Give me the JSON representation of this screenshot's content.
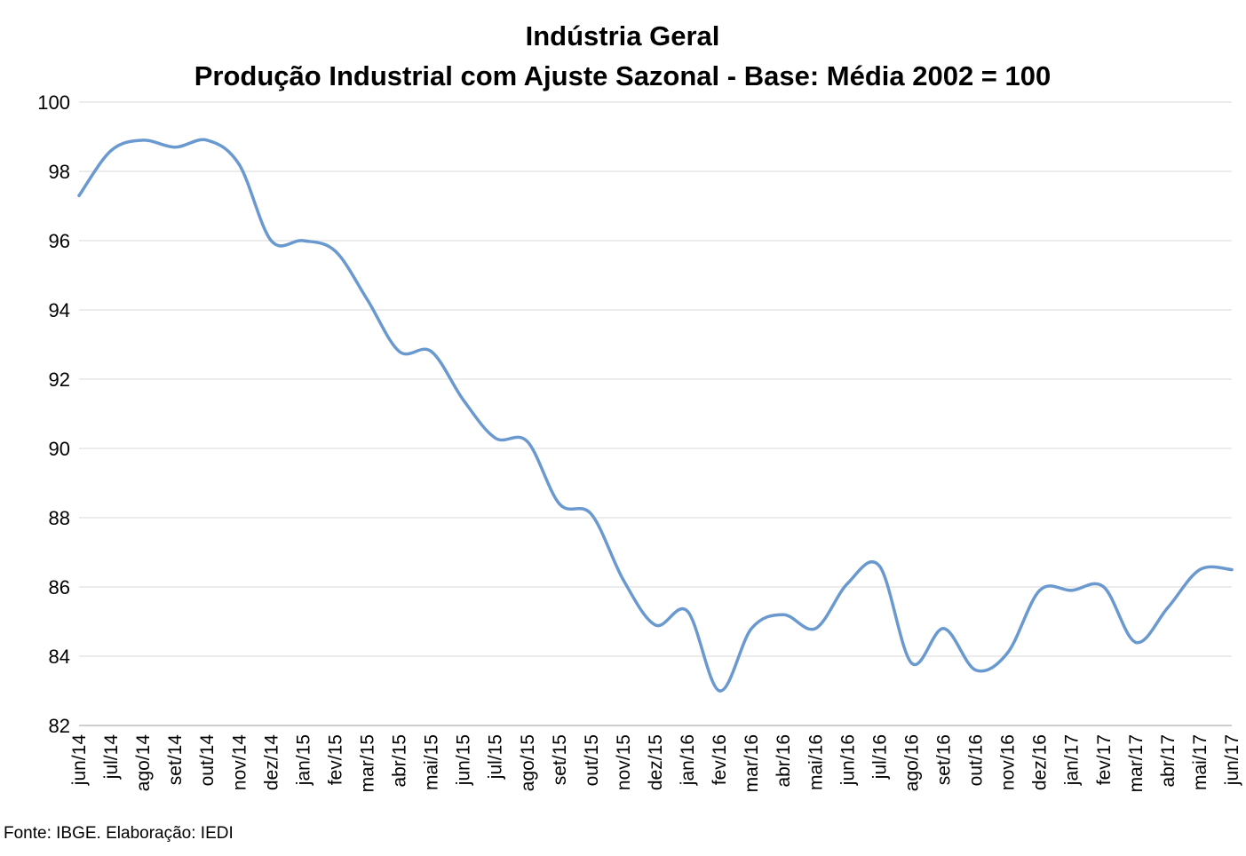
{
  "chart_data": {
    "type": "line",
    "title": "Indústria Geral",
    "subtitle": "Produção Industrial com Ajuste Sazonal - Base: Média 2002 = 100",
    "categories": [
      "jun/14",
      "jul/14",
      "ago/14",
      "set/14",
      "out/14",
      "nov/14",
      "dez/14",
      "jan/15",
      "fev/15",
      "mar/15",
      "abr/15",
      "mai/15",
      "jun/15",
      "jul/15",
      "ago/15",
      "set/15",
      "out/15",
      "nov/15",
      "dez/15",
      "jan/16",
      "fev/16",
      "mar/16",
      "abr/16",
      "mai/16",
      "jun/16",
      "jul/16",
      "ago/16",
      "set/16",
      "out/16",
      "nov/16",
      "dez/16",
      "jan/17",
      "fev/17",
      "mar/17",
      "abr/17",
      "mai/17",
      "jun/17"
    ],
    "series": [
      {
        "values": [
          97.3,
          98.6,
          98.9,
          98.7,
          98.9,
          98.2,
          96.0,
          96.0,
          95.7,
          94.3,
          92.8,
          92.8,
          91.4,
          90.3,
          90.2,
          88.4,
          88.1,
          86.2,
          84.9,
          85.3,
          83.0,
          84.8,
          85.2,
          84.8,
          86.1,
          86.6,
          83.8,
          84.8,
          83.6,
          84.1,
          85.9,
          85.9,
          86.0,
          84.4,
          85.4,
          86.5,
          86.5
        ]
      }
    ],
    "ylim": [
      82,
      100
    ],
    "yticks": [
      "100",
      "98",
      "96",
      "94",
      "92",
      "90",
      "88",
      "86",
      "84",
      "82"
    ],
    "ytick_values": [
      100,
      98,
      96,
      94,
      92,
      90,
      88,
      86,
      84,
      82
    ],
    "xlabel": "",
    "ylabel": "",
    "grid": true,
    "legend": "none",
    "line_color": "#6A99CF"
  },
  "footer": {
    "source": "Fonte: IBGE. Elaboração: IEDI"
  }
}
